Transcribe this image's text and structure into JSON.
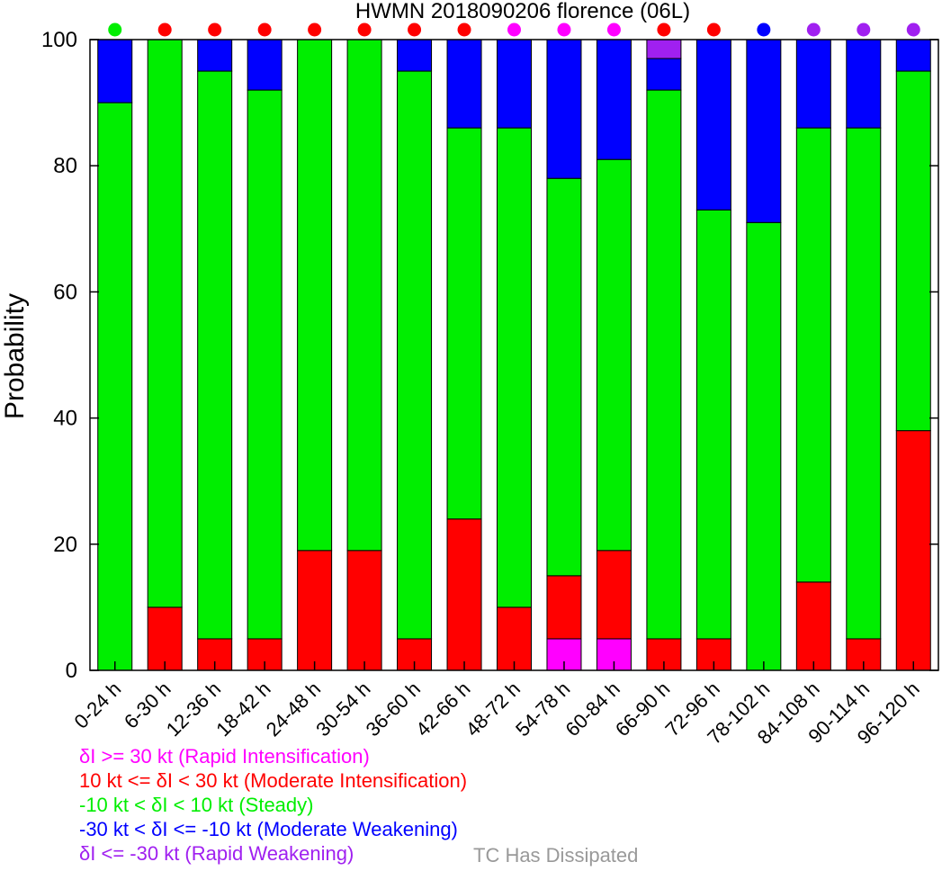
{
  "chart_data": {
    "type": "bar",
    "stacked": true,
    "title": "HWMN 2018090206 florence (06L)",
    "xlabel": "",
    "ylabel": "Probability",
    "ylim": [
      0,
      100
    ],
    "yticks": [
      0,
      20,
      40,
      60,
      80,
      100
    ],
    "grid": false,
    "categories": [
      "0-24 h",
      "6-30 h",
      "12-36 h",
      "18-42 h",
      "24-48 h",
      "30-54 h",
      "36-60 h",
      "42-66 h",
      "48-72 h",
      "54-78 h",
      "60-84 h",
      "66-90 h",
      "72-96 h",
      "78-102 h",
      "84-108 h",
      "90-114 h",
      "96-120 h"
    ],
    "series": [
      {
        "name": "δI >= 30 kt (Rapid Intensification)",
        "color": "#ff00ff",
        "values": [
          0,
          0,
          0,
          0,
          0,
          0,
          0,
          0,
          0,
          5,
          5,
          0,
          0,
          0,
          0,
          0,
          0
        ]
      },
      {
        "name": "10 kt <= δI < 30 kt (Moderate Intensification)",
        "color": "#ff0000",
        "values": [
          0,
          10,
          5,
          5,
          19,
          19,
          5,
          24,
          10,
          10,
          14,
          5,
          5,
          0,
          14,
          5,
          38
        ]
      },
      {
        "name": "-10 kt < δI < 10 kt (Steady)",
        "color": "#00ee00",
        "values": [
          90,
          90,
          90,
          87,
          81,
          81,
          90,
          62,
          76,
          63,
          62,
          87,
          68,
          71,
          72,
          81,
          57
        ]
      },
      {
        "name": "-30 kt < δI <= -10 kt (Moderate Weakening)",
        "color": "#0000ff",
        "values": [
          10,
          0,
          5,
          8,
          0,
          0,
          5,
          14,
          14,
          22,
          19,
          5,
          27,
          29,
          14,
          14,
          5
        ]
      },
      {
        "name": "δI <= -30 kt (Rapid Weakening)",
        "color": "#a020f0",
        "values": [
          0,
          0,
          0,
          0,
          0,
          0,
          0,
          0,
          0,
          0,
          0,
          3,
          0,
          0,
          0,
          0,
          0
        ]
      }
    ],
    "dominant_category_colors": [
      "#00ee00",
      "#ff0000",
      "#ff0000",
      "#ff0000",
      "#ff0000",
      "#ff0000",
      "#ff0000",
      "#ff0000",
      "#ff00ff",
      "#ff00ff",
      "#ff00ff",
      "#ff0000",
      "#ff0000",
      "#0000ff",
      "#a020f0",
      "#a020f0",
      "#a020f0"
    ]
  },
  "legend": {
    "dissipated_label": "TC Has Dissipated",
    "dissipated_color": "#999999"
  }
}
